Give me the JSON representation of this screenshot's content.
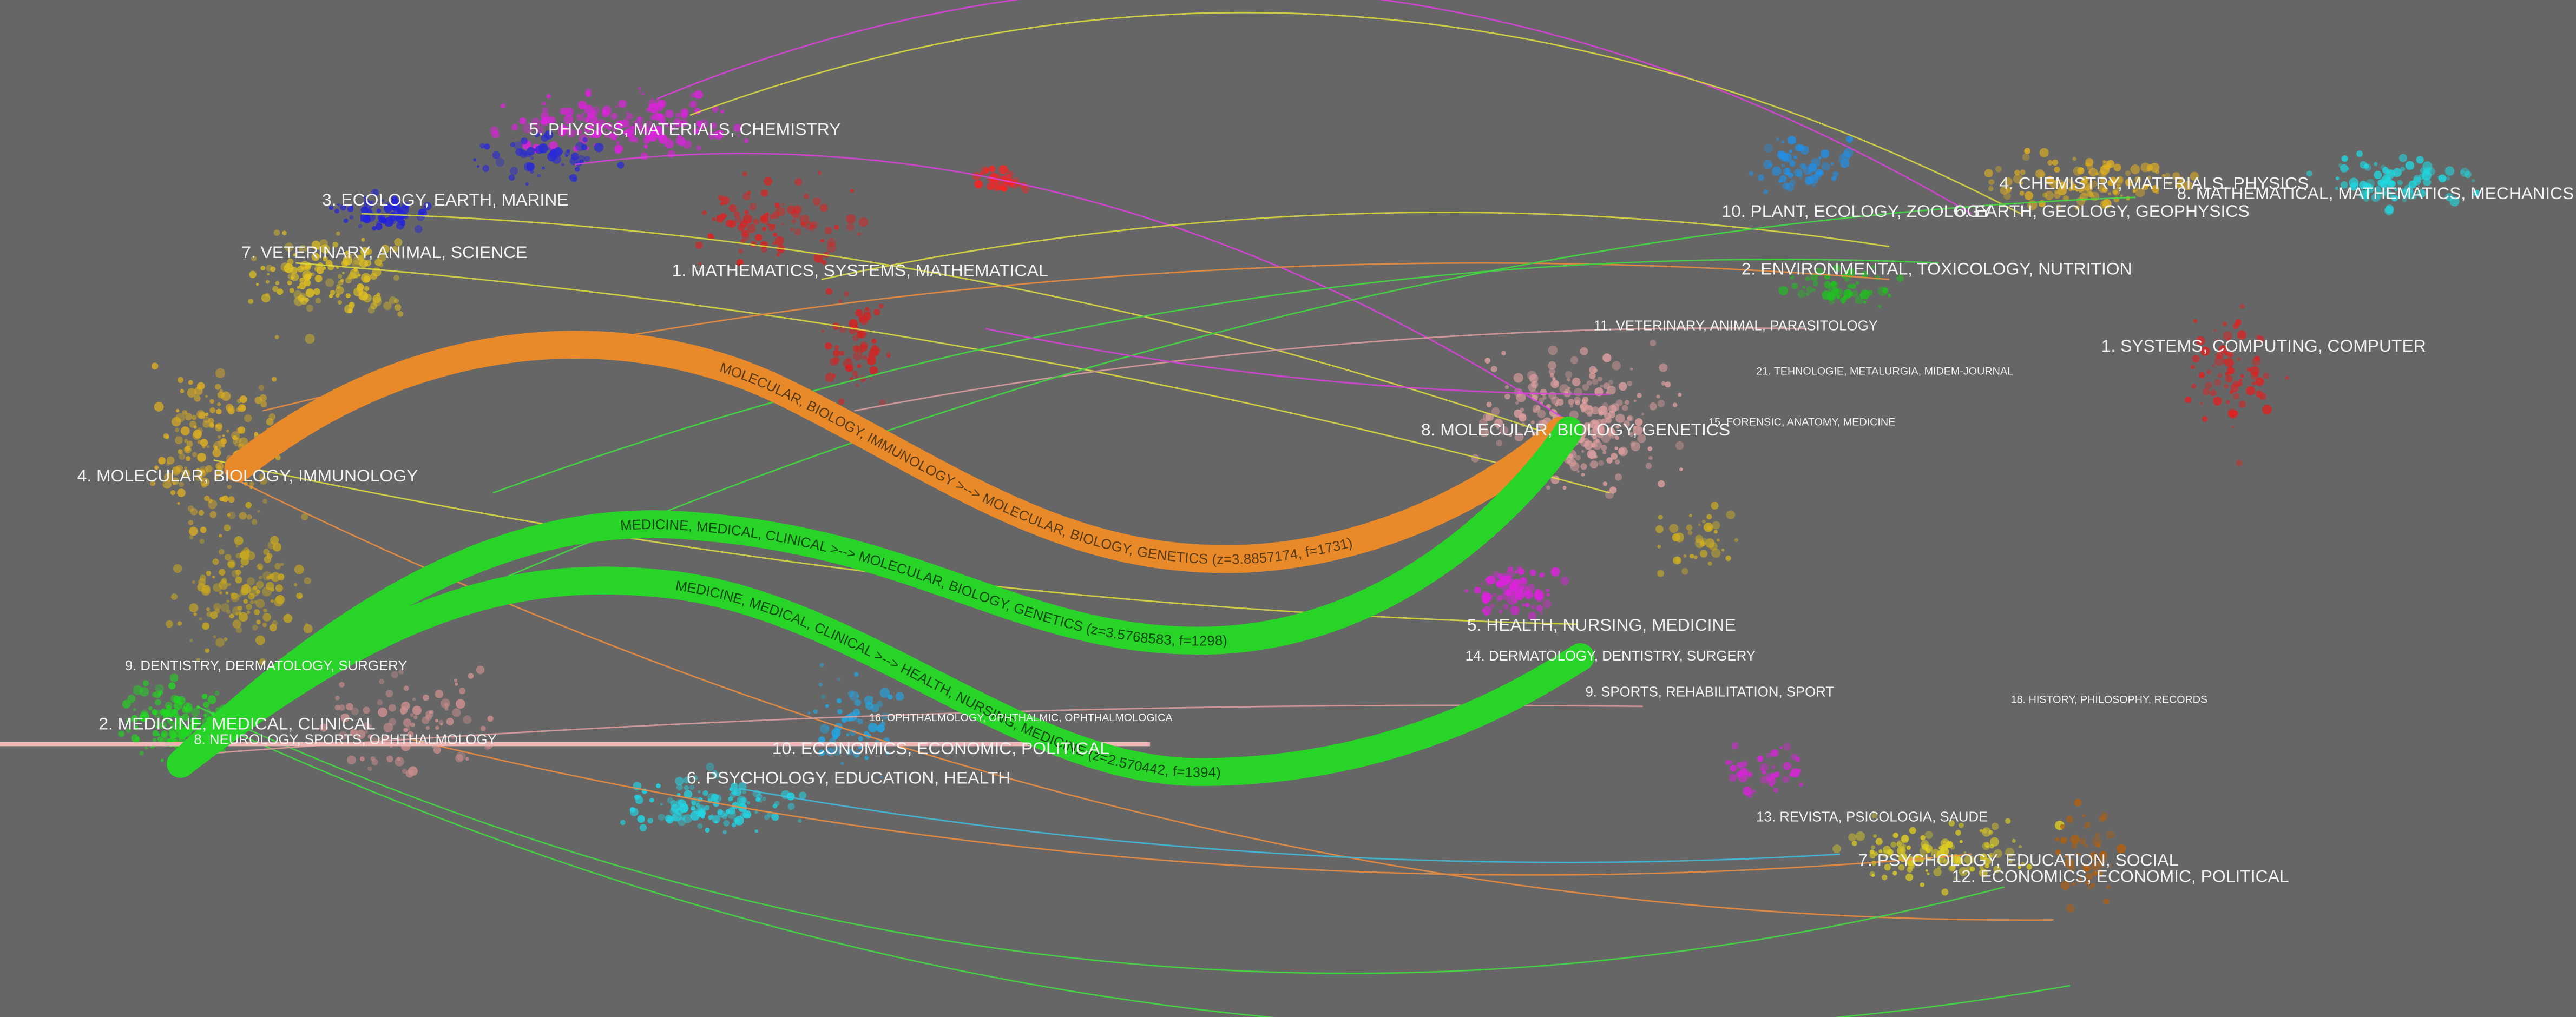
{
  "left_labels": [
    "5. PHYSICS, MATERIALS, CHEMISTRY",
    "3. ECOLOGY, EARTH, MARINE",
    "7. VETERINARY, ANIMAL, SCIENCE",
    "1. MATHEMATICS, SYSTEMS, MATHEMATICAL",
    "4. MOLECULAR, BIOLOGY, IMMUNOLOGY",
    "9. DENTISTRY, DERMATOLOGY, SURGERY",
    "2. MEDICINE, MEDICAL, CLINICAL",
    "8. NEUROLOGY, SPORTS, OPHTHALMOLOGY",
    "10. ECONOMICS, ECONOMIC, POLITICAL",
    "6. PSYCHOLOGY, EDUCATION, HEALTH"
  ],
  "right_labels": [
    "4. CHEMISTRY, MATERIALS, PHYSICS",
    "10. PLANT, ECOLOGY, ZOOLOGY",
    "6. EARTH, GEOLOGY, GEOPHYSICS",
    "8. MATHEMATICAL, MATHEMATICS, MECHANICS",
    "2. ENVIRONMENTAL, TOXICOLOGY, NUTRITION",
    "11. VETERINARY, ANIMAL, PARASITOLOGY",
    "1. SYSTEMS, COMPUTING, COMPUTER",
    "21. TEHNOLOGIE, METALURGIA, MIDEM-JOURNAL",
    "8. MOLECULAR, BIOLOGY, GENETICS",
    "15. FORENSIC, ANATOMY, MEDICINE",
    "5. HEALTH, NURSING, MEDICINE",
    "14. DERMATOLOGY, DENTISTRY, SURGERY",
    "9. SPORTS, REHABILITATION, SPORT",
    "16. OPHTHALMOLOGY, OPHTHALMIC, OPHTHALMOLOGICA",
    "18. HISTORY, PHILOSOPHY, RECORDS",
    "13. REVISTA, PSICOLOGIA, SAUDE",
    "7. PSYCHOLOGY, EDUCATION, SOCIAL",
    "12. ECONOMICS, ECONOMIC, POLITICAL"
  ],
  "flows": [
    "MOLECULAR, BIOLOGY, IMMUNOLOGY >--> MOLECULAR, BIOLOGY, GENETICS (z=3.8857174, f=1731)",
    "MEDICINE, MEDICAL, CLINICAL >--> MOLECULAR, BIOLOGY, GENETICS (z=3.5768583, f=1298)",
    "MEDICINE, MEDICAL, CLINICAL >--> HEALTH, NURSING, MEDICINE (z=2.570442, f=1394)"
  ]
}
